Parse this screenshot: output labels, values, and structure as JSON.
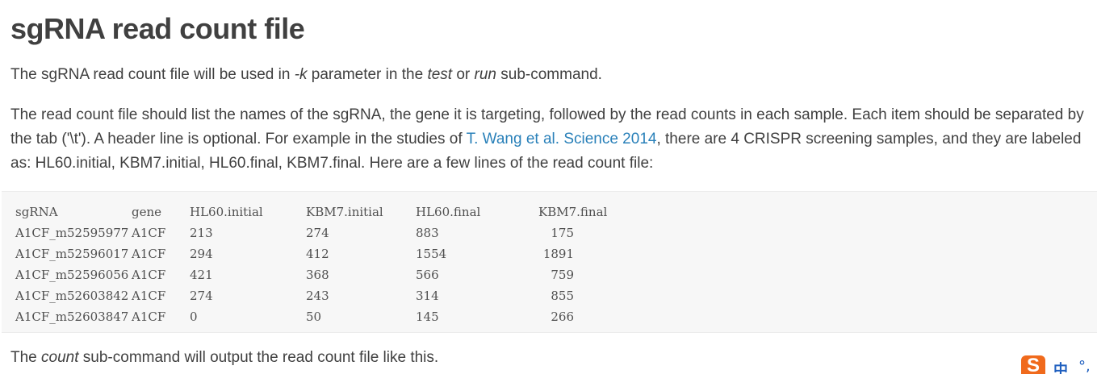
{
  "title": "sgRNA read count file",
  "p1": {
    "t1": "The sgRNA read count file will be used in ",
    "em1": "-k",
    "t2": " parameter in the ",
    "em2": "test",
    "t3": " or ",
    "em3": "run",
    "t4": " sub-command."
  },
  "p2": {
    "t1": "The read count file should list the names of the sgRNA, the gene it is targeting, followed by the read counts in each sample. Each item should be separated by the tab ('\\t'). A header line is optional. For example in the studies of ",
    "link": "T. Wang et al. Science 2014",
    "t2": ", there are 4 CRISPR screening samples, and they are labeled as: HL60.initial, KBM7.initial, HL60.final, KBM7.final. Here are a few lines of the read count file:"
  },
  "table": {
    "header": [
      "sgRNA",
      "gene",
      "HL60.initial",
      "KBM7.initial",
      "HL60.final",
      "KBM7.final"
    ],
    "rows": [
      [
        "A1CF_m52595977",
        "A1CF",
        "213",
        "274",
        "883",
        "175"
      ],
      [
        "A1CF_m52596017",
        "A1CF",
        "294",
        "412",
        "1554",
        "1891"
      ],
      [
        "A1CF_m52596056",
        "A1CF",
        "421",
        "368",
        "566",
        "759"
      ],
      [
        "A1CF_m52603842",
        "A1CF",
        "274",
        "243",
        "314",
        "855"
      ],
      [
        "A1CF_m52603847",
        "A1CF",
        "0",
        "50",
        "145",
        "266"
      ]
    ]
  },
  "p3": {
    "t1": "The ",
    "em1": "count",
    "t2": " sub-command will output the read count file like this."
  },
  "ime": {
    "logo_icon": "sogou-ime-icon",
    "mode_label": "中",
    "punct_label": "°,",
    "brand_color": "#f06a1c",
    "mode_color": "#1f5fbf"
  }
}
